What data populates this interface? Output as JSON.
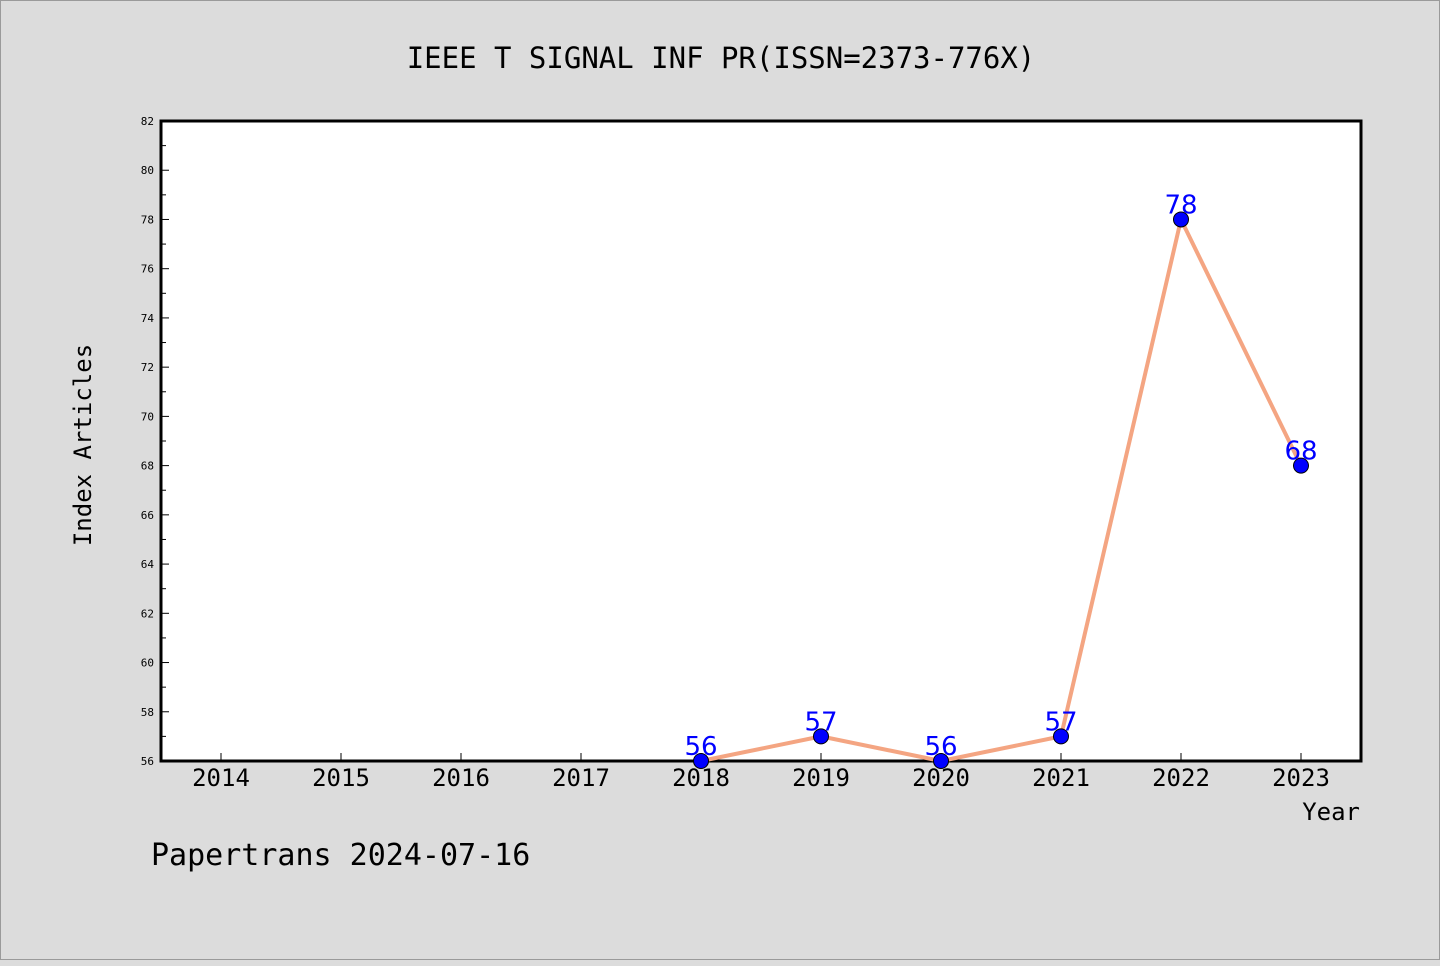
{
  "chart_data": {
    "type": "line",
    "title": "IEEE T SIGNAL INF PR(ISSN=2373-776X)",
    "xlabel": "Year",
    "ylabel": "Index Articles",
    "categories": [
      "2014",
      "2015",
      "2016",
      "2017",
      "2018",
      "2019",
      "2020",
      "2021",
      "2022",
      "2023"
    ],
    "series": [
      {
        "x": [
          "2018",
          "2019",
          "2020",
          "2021",
          "2022",
          "2023"
        ],
        "values": [
          56,
          57,
          56,
          57,
          78,
          68
        ],
        "line_color": "#f4a582",
        "marker_color": "#0000ff",
        "label_color": "#0000ff"
      }
    ],
    "ylim": [
      56,
      82
    ],
    "yticks": [
      56,
      58,
      60,
      62,
      64,
      66,
      68,
      70,
      72,
      74,
      76,
      78,
      80,
      82
    ],
    "grid": false,
    "footer": "Papertrans 2024-07-16"
  },
  "colors": {
    "background": "#dcdcdc",
    "plot_background": "#ffffff",
    "axis": "#000000"
  }
}
